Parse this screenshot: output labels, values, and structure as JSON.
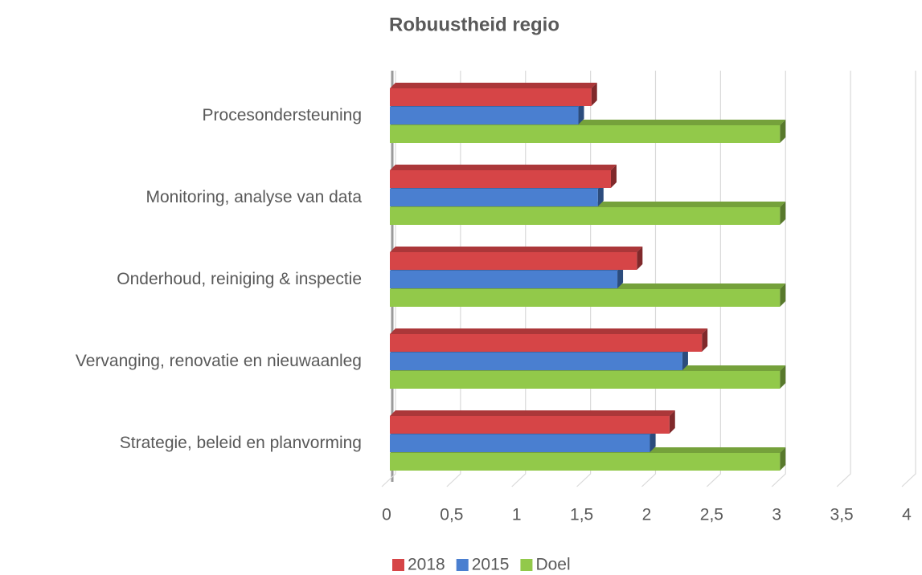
{
  "chart_data": {
    "type": "bar3d_horizontal",
    "title": "Robuustheid regio",
    "categories": [
      "Procesondersteuning",
      "Monitoring, analyse van data",
      "Onderhoud, reiniging & inspectie",
      "Vervanging, renovatie en nieuwaanleg",
      "Strategie, beleid en planvorming"
    ],
    "series": [
      {
        "name": "2018",
        "color": "#d64547",
        "values": [
          1.55,
          1.7,
          1.9,
          2.4,
          2.15
        ]
      },
      {
        "name": "2015",
        "color": "#4a7fd0",
        "values": [
          1.45,
          1.6,
          1.75,
          2.25,
          2.0
        ]
      },
      {
        "name": "Doel",
        "color": "#92c94a",
        "values": [
          3,
          3,
          3,
          3,
          3
        ]
      }
    ],
    "xlim": [
      0,
      4
    ],
    "xticks": [
      0,
      {
        "value": 0.5,
        "label": "0,5"
      },
      1,
      {
        "value": 1.5,
        "label": "1,5"
      },
      2,
      {
        "value": 2.5,
        "label": "2,5"
      },
      3,
      {
        "value": 3.5,
        "label": "3,5"
      },
      4
    ],
    "grid": true,
    "legend": "bottom"
  }
}
